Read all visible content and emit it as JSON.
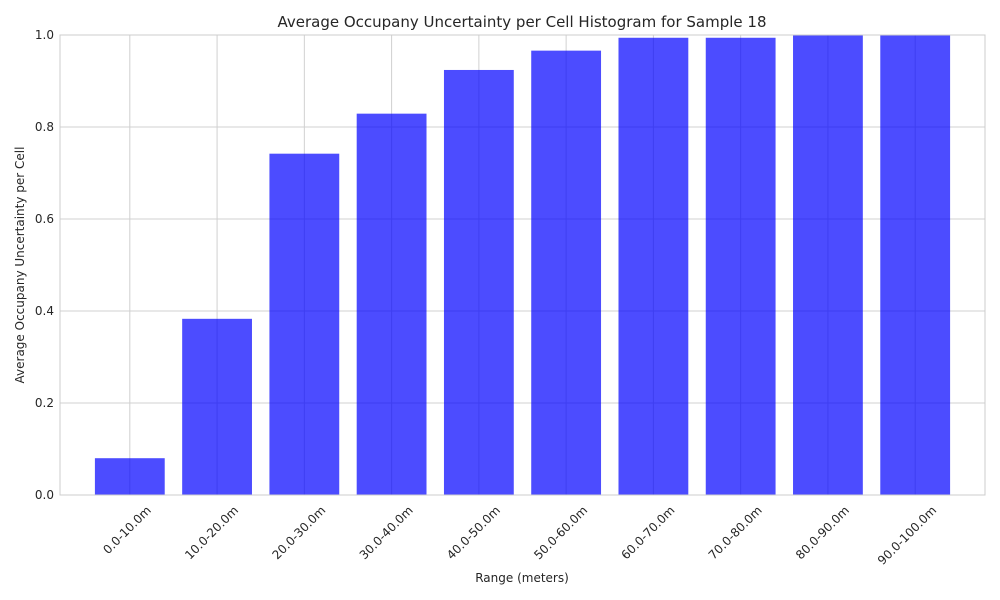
{
  "chart_data": {
    "type": "bar",
    "title": "Average Occupany Uncertainty per Cell Histogram for Sample 18",
    "xlabel": "Range (meters)",
    "ylabel": "Average Occupany Uncertainty per Cell",
    "categories": [
      "0.0-10.0m",
      "10.0-20.0m",
      "20.0-30.0m",
      "30.0-40.0m",
      "40.0-50.0m",
      "50.0-60.0m",
      "60.0-70.0m",
      "70.0-80.0m",
      "80.0-90.0m",
      "90.0-100.0m"
    ],
    "values": [
      0.08,
      0.383,
      0.742,
      0.829,
      0.924,
      0.966,
      0.994,
      0.994,
      0.999,
      0.999
    ],
    "ylim": [
      0,
      1.0
    ],
    "yticks": [
      "0.0",
      "0.2",
      "0.4",
      "0.6",
      "0.8",
      "1.0"
    ],
    "bar_color": "#0000ff",
    "bar_opacity": 0.7,
    "grid": true,
    "legend": "none"
  }
}
